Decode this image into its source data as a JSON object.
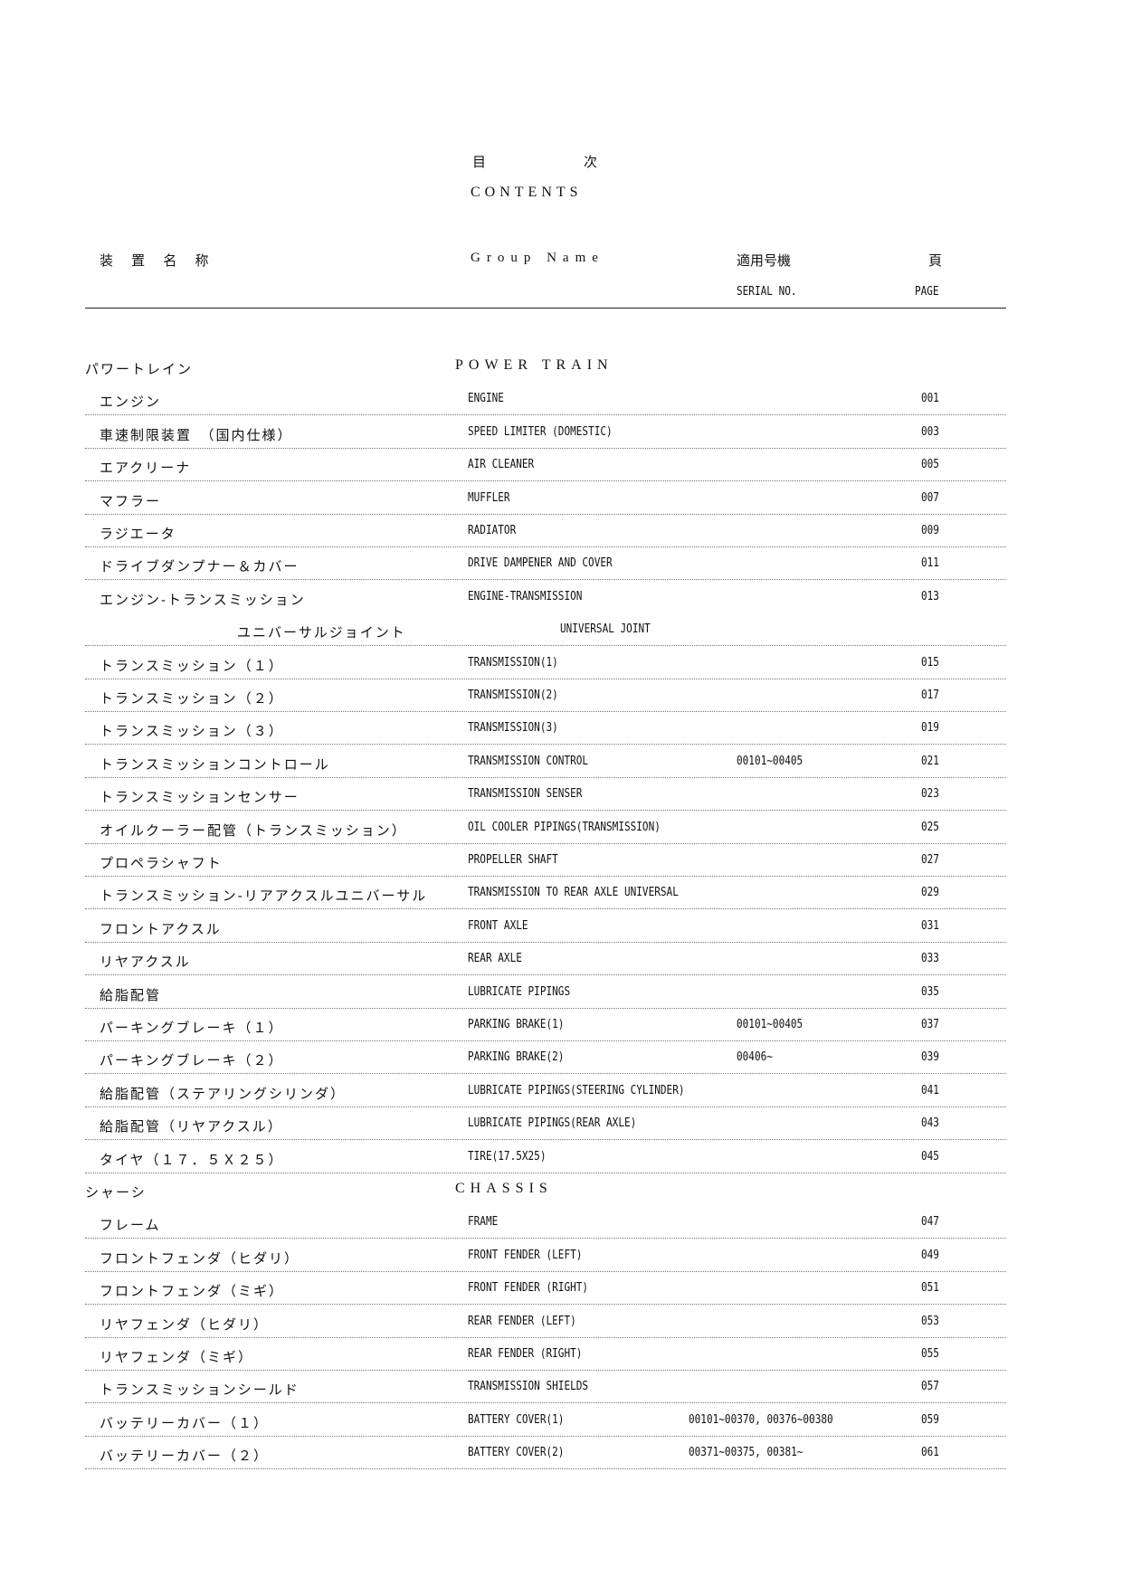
{
  "title": {
    "jp_1": "目",
    "jp_2": "次",
    "en": "CONTENTS"
  },
  "header": {
    "col_name_jp": "装 置 名 称",
    "col_group": "Group Name",
    "col_serial_jp": "適用号機",
    "col_serial_en": "SERIAL NO.",
    "col_page_jp": "頁",
    "col_page_en": "PAGE"
  },
  "rows": [
    {
      "type": "section",
      "jp": "パワートレイン",
      "en": "POWER TRAIN"
    },
    {
      "type": "item",
      "jp": "エンジン",
      "en": "ENGINE",
      "serial": "",
      "page": "001",
      "dots": true
    },
    {
      "type": "item",
      "jp": "車速制限装置　（国内仕様）",
      "en": "SPEED LIMITER (DOMESTIC)",
      "serial": "",
      "page": "003",
      "dots": true
    },
    {
      "type": "item",
      "jp": "エアクリーナ",
      "en": "AIR CLEANER",
      "serial": "",
      "page": "005",
      "dots": true
    },
    {
      "type": "item",
      "jp": "マフラー",
      "en": "MUFFLER",
      "serial": "",
      "page": "007",
      "dots": true
    },
    {
      "type": "item",
      "jp": "ラジエータ",
      "en": "RADIATOR",
      "serial": "",
      "page": "009",
      "dots": true
    },
    {
      "type": "item",
      "jp": "ドライブダンプナー＆カバー",
      "en": "DRIVE DAMPENER AND COVER",
      "serial": "",
      "page": "011",
      "dots": true
    },
    {
      "type": "item",
      "jp": "エンジン-トランスミッション",
      "en": "ENGINE-TRANSMISSION",
      "serial": "",
      "page": "013",
      "dots": false
    },
    {
      "type": "sub",
      "jp": "ユニバーサルジョイント",
      "en": "UNIVERSAL JOINT",
      "serial": "",
      "page": "",
      "dots": true
    },
    {
      "type": "item",
      "jp": "トランスミッション（１）",
      "en": "TRANSMISSION(1)",
      "serial": "",
      "page": "015",
      "dots": true
    },
    {
      "type": "item",
      "jp": "トランスミッション（２）",
      "en": "TRANSMISSION(2)",
      "serial": "",
      "page": "017",
      "dots": true
    },
    {
      "type": "item",
      "jp": "トランスミッション（３）",
      "en": "TRANSMISSION(3)",
      "serial": "",
      "page": "019",
      "dots": true
    },
    {
      "type": "item",
      "jp": "トランスミッションコントロール",
      "en": "TRANSMISSION CONTROL",
      "serial": "00101~00405",
      "page": "021",
      "dots": true
    },
    {
      "type": "item",
      "jp": "トランスミッションセンサー",
      "en": "TRANSMISSION SENSER",
      "serial": "",
      "page": "023",
      "dots": true
    },
    {
      "type": "item",
      "jp": "オイルクーラー配管（トランスミッション）",
      "en": "OIL COOLER PIPINGS(TRANSMISSION)",
      "serial": "",
      "page": "025",
      "dots": true
    },
    {
      "type": "item",
      "jp": "プロペラシャフト",
      "en": "PROPELLER SHAFT",
      "serial": "",
      "page": "027",
      "dots": true
    },
    {
      "type": "item",
      "jp": "トランスミッション-リアアクスルユニバーサル",
      "en": "TRANSMISSION TO REAR AXLE UNIVERSAL",
      "serial": "",
      "page": "029",
      "dots": true
    },
    {
      "type": "item",
      "jp": "フロントアクスル",
      "en": "FRONT AXLE",
      "serial": "",
      "page": "031",
      "dots": true
    },
    {
      "type": "item",
      "jp": "リヤアクスル",
      "en": "REAR AXLE",
      "serial": "",
      "page": "033",
      "dots": true
    },
    {
      "type": "item",
      "jp": "給脂配管",
      "en": "LUBRICATE PIPINGS",
      "serial": "",
      "page": "035",
      "dots": true
    },
    {
      "type": "item",
      "jp": "パーキングブレーキ（１）",
      "en": "PARKING BRAKE(1)",
      "serial": "00101~00405",
      "page": "037",
      "dots": true
    },
    {
      "type": "item",
      "jp": "パーキングブレーキ（２）",
      "en": "PARKING BRAKE(2)",
      "serial": "00406~",
      "page": "039",
      "dots": true
    },
    {
      "type": "item",
      "jp": "給脂配管（ステアリングシリンダ）",
      "en": "LUBRICATE PIPINGS(STEERING CYLINDER)",
      "serial": "",
      "page": "041",
      "dots": true
    },
    {
      "type": "item",
      "jp": "給脂配管（リヤアクスル）",
      "en": "LUBRICATE PIPINGS(REAR AXLE)",
      "serial": "",
      "page": "043",
      "dots": true
    },
    {
      "type": "item",
      "jp": "タイヤ（１７．５Ｘ２５）",
      "en": "TIRE(17.5X25)",
      "serial": "",
      "page": "045",
      "dots": true
    },
    {
      "type": "section",
      "jp": "シャーシ",
      "en": "CHASSIS"
    },
    {
      "type": "item",
      "jp": "フレーム",
      "en": "FRAME",
      "serial": "",
      "page": "047",
      "dots": true
    },
    {
      "type": "item",
      "jp": "フロントフェンダ（ヒダリ）",
      "en": "FRONT FENDER (LEFT)",
      "serial": "",
      "page": "049",
      "dots": true
    },
    {
      "type": "item",
      "jp": "フロントフェンダ（ミギ）",
      "en": "FRONT FENDER (RIGHT)",
      "serial": "",
      "page": "051",
      "dots": true
    },
    {
      "type": "item",
      "jp": "リヤフェンダ（ヒダリ）",
      "en": "REAR FENDER (LEFT)",
      "serial": "",
      "page": "053",
      "dots": true
    },
    {
      "type": "item",
      "jp": "リヤフェンダ（ミギ）",
      "en": "REAR FENDER (RIGHT)",
      "serial": "",
      "page": "055",
      "dots": true
    },
    {
      "type": "item",
      "jp": "トランスミッションシールド",
      "en": "TRANSMISSION SHIELDS",
      "serial": "",
      "page": "057",
      "dots": true
    },
    {
      "type": "item",
      "jp": "バッテリーカバー（１）",
      "en": "BATTERY COVER(1)",
      "serial": "00101~00370, 00376~00380",
      "page": "059",
      "dots": true
    },
    {
      "type": "item",
      "jp": "バッテリーカバー（２）",
      "en": "BATTERY COVER(2)",
      "serial": "00371~00375, 00381~",
      "page": "061",
      "dots": true
    }
  ]
}
